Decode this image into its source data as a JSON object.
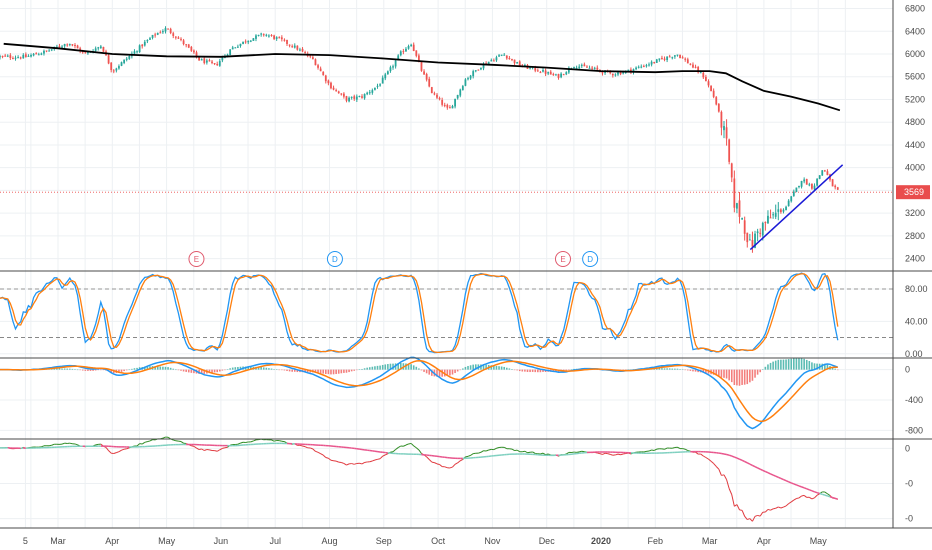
{
  "chart_data": {
    "type": "candlestick",
    "time_axis": {
      "labels": [
        {
          "text": "5",
          "month": 1.4
        },
        {
          "text": "Mar",
          "month": 2
        },
        {
          "text": "Apr",
          "month": 3
        },
        {
          "text": "May",
          "month": 4
        },
        {
          "text": "Jun",
          "month": 5
        },
        {
          "text": "Jul",
          "month": 6
        },
        {
          "text": "Aug",
          "month": 7
        },
        {
          "text": "Sep",
          "month": 8
        },
        {
          "text": "Oct",
          "month": 9
        },
        {
          "text": "Nov",
          "month": 10
        },
        {
          "text": "Dec",
          "month": 11
        },
        {
          "text": "2020",
          "month": 12,
          "bold": true
        },
        {
          "text": "Feb",
          "month": 13
        },
        {
          "text": "Mar",
          "month": 14
        },
        {
          "text": "Apr",
          "month": 15
        },
        {
          "text": "May",
          "month": 16
        }
      ]
    },
    "price_pane": {
      "y_ticks": [
        2400,
        2800,
        3200,
        3600,
        4000,
        4400,
        4800,
        5200,
        5600,
        6000,
        6400,
        6800
      ],
      "ylim": [
        2200,
        6950
      ],
      "last_price": "3569",
      "last_price_value": 3569,
      "price_key": [
        [
          1.4,
          5950
        ],
        [
          1.8,
          6050
        ],
        [
          2.2,
          6200
        ],
        [
          2.5,
          6000
        ],
        [
          2.8,
          6150
        ],
        [
          3.0,
          5700
        ],
        [
          3.3,
          5950
        ],
        [
          3.6,
          6200
        ],
        [
          3.8,
          6350
        ],
        [
          4.0,
          6450
        ],
        [
          4.3,
          6200
        ],
        [
          4.6,
          5900
        ],
        [
          4.9,
          5800
        ],
        [
          5.2,
          6100
        ],
        [
          5.5,
          6250
        ],
        [
          5.8,
          6350
        ],
        [
          6.1,
          6250
        ],
        [
          6.4,
          6100
        ],
        [
          6.7,
          5900
        ],
        [
          7.0,
          5450
        ],
        [
          7.3,
          5200
        ],
        [
          7.6,
          5250
        ],
        [
          7.9,
          5450
        ],
        [
          8.1,
          5700
        ],
        [
          8.3,
          6000
        ],
        [
          8.5,
          6200
        ],
        [
          8.7,
          5700
        ],
        [
          8.9,
          5300
        ],
        [
          9.2,
          5000
        ],
        [
          9.5,
          5550
        ],
        [
          9.8,
          5800
        ],
        [
          10.2,
          6000
        ],
        [
          10.5,
          5800
        ],
        [
          10.9,
          5700
        ],
        [
          11.2,
          5600
        ],
        [
          11.5,
          5800
        ],
        [
          11.8,
          5750
        ],
        [
          12.2,
          5650
        ],
        [
          12.5,
          5700
        ],
        [
          12.8,
          5800
        ],
        [
          13.1,
          5900
        ],
        [
          13.4,
          6000
        ],
        [
          13.6,
          5850
        ],
        [
          13.9,
          5600
        ],
        [
          14.1,
          5200
        ],
        [
          14.3,
          4500
        ],
        [
          14.45,
          3400
        ],
        [
          14.6,
          3100
        ],
        [
          14.75,
          2600
        ],
        [
          14.9,
          2900
        ],
        [
          15.1,
          3100
        ],
        [
          15.4,
          3300
        ],
        [
          15.7,
          3800
        ],
        [
          15.9,
          3650
        ],
        [
          16.1,
          4000
        ],
        [
          16.25,
          3700
        ],
        [
          16.4,
          3550
        ]
      ],
      "ma200": [
        [
          1.0,
          6180
        ],
        [
          2.0,
          6100
        ],
        [
          3.0,
          6000
        ],
        [
          4.0,
          5960
        ],
        [
          5.0,
          5950
        ],
        [
          6.0,
          6000
        ],
        [
          7.0,
          5980
        ],
        [
          8.0,
          5920
        ],
        [
          9.0,
          5850
        ],
        [
          10.0,
          5810
        ],
        [
          11.0,
          5760
        ],
        [
          12.0,
          5700
        ],
        [
          13.0,
          5680
        ],
        [
          13.5,
          5700
        ],
        [
          14.0,
          5700
        ],
        [
          14.3,
          5660
        ],
        [
          14.6,
          5520
        ],
        [
          15.0,
          5350
        ],
        [
          15.5,
          5250
        ],
        [
          16.0,
          5130
        ],
        [
          16.4,
          5010
        ]
      ],
      "trendline": {
        "from": [
          14.75,
          2560
        ],
        "to": [
          16.45,
          4050
        ]
      },
      "events": [
        {
          "label": "E",
          "month": 4.55,
          "color": "#e05a6d"
        },
        {
          "label": "D",
          "month": 7.1,
          "color": "#2196f3"
        },
        {
          "label": "E",
          "month": 11.3,
          "color": "#e05a6d"
        },
        {
          "label": "D",
          "month": 11.8,
          "color": "#2196f3"
        }
      ]
    },
    "stoch_pane": {
      "y_ticks": [
        "80.00",
        "40.00",
        "0.00"
      ],
      "y_values": [
        80,
        40,
        0
      ],
      "ylim": [
        -4,
        101
      ],
      "levels": [
        80,
        20
      ]
    },
    "macd_pane": {
      "y_ticks": [
        "0",
        "-400",
        "-800"
      ],
      "y_values": [
        0,
        -400,
        -800
      ],
      "ylim": [
        -900,
        140
      ]
    },
    "rs_pane": {
      "y_ticks": [
        "0",
        "-0",
        "-0"
      ],
      "y_values": [
        0,
        -0.5,
        -1.0
      ],
      "ylim": [
        -1.12,
        0.12
      ]
    },
    "colors": {
      "up": "#26a69a",
      "down": "#ef5350",
      "ma": "#000000",
      "trendline": "#1a1ad6",
      "stoch_k": "#2196f3",
      "stoch_d": "#ff7f0e",
      "macd": "#2196f3",
      "signal": "#ff7f0e",
      "rs_up": "#2e8b22",
      "rs_down": "#e0393e",
      "rs_ma_pink": "#e8558c",
      "rs_ma_teal": "#7fd0c0",
      "price_tag": "#e94c4c",
      "grid": "#edf0f3",
      "border": "#4a4a4a"
    }
  }
}
